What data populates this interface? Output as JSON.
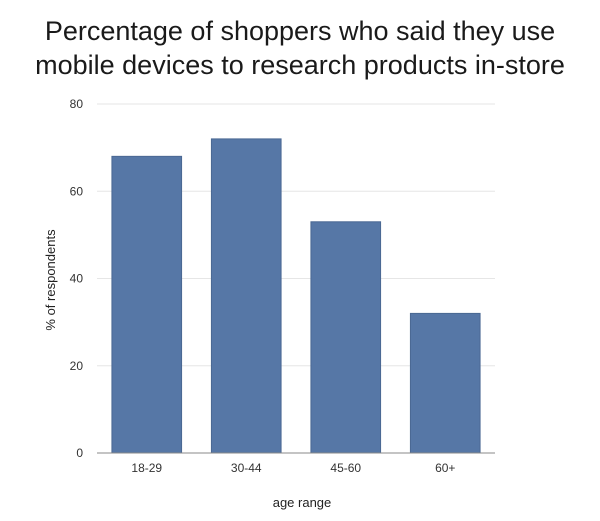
{
  "chart_data": {
    "type": "bar",
    "title_lines": [
      "Percentage of shoppers who said they use",
      "mobile devices to research products in-store"
    ],
    "categories": [
      "18-29",
      "30-44",
      "45-60",
      "60+"
    ],
    "values": [
      68,
      72,
      53,
      32
    ],
    "xlabel": "age range",
    "ylabel": "% of respondents",
    "ylim": [
      0,
      80
    ],
    "yticks": [
      0,
      20,
      40,
      60,
      80
    ],
    "grid": true,
    "legend": "none",
    "bar_color": "#5677a6",
    "bar_border_color": "#4a6893",
    "grid_color": "#e6e6e6",
    "axis_color": "#888888"
  }
}
